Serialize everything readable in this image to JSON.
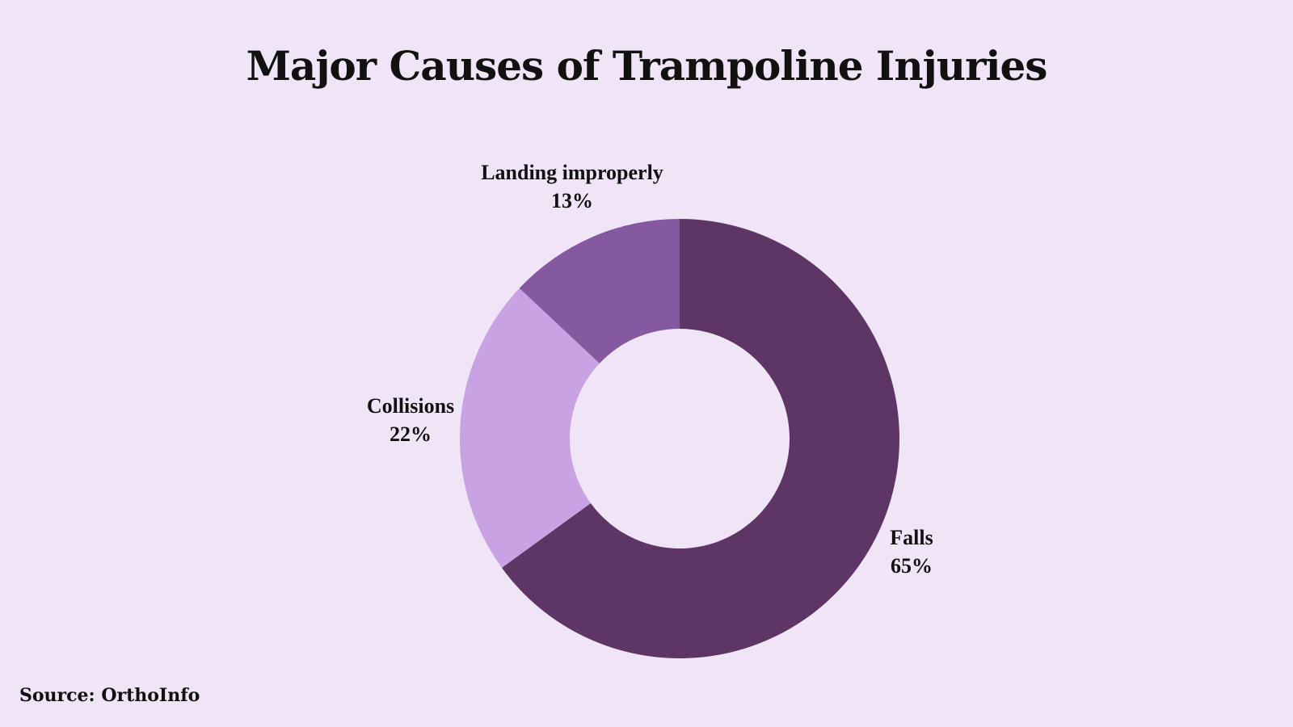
{
  "title": "Major Causes of Trampoline Injuries",
  "source": "Source: OrthoInfo",
  "background_color": "#f0e4f7",
  "chart_data": {
    "type": "pie",
    "donut": true,
    "title": "Major Causes of Trampoline Injuries",
    "start_angle_deg": 0,
    "direction": "clockwise",
    "legend": "none",
    "slices": [
      {
        "label": "Falls",
        "value": 65,
        "value_label": "65%",
        "color": "#5e3666"
      },
      {
        "label": "Collisions",
        "value": 22,
        "value_label": "22%",
        "color": "#c8a2e3"
      },
      {
        "label": "Landing improperly",
        "value": 13,
        "value_label": "13%",
        "color": "#8459a0"
      }
    ]
  }
}
